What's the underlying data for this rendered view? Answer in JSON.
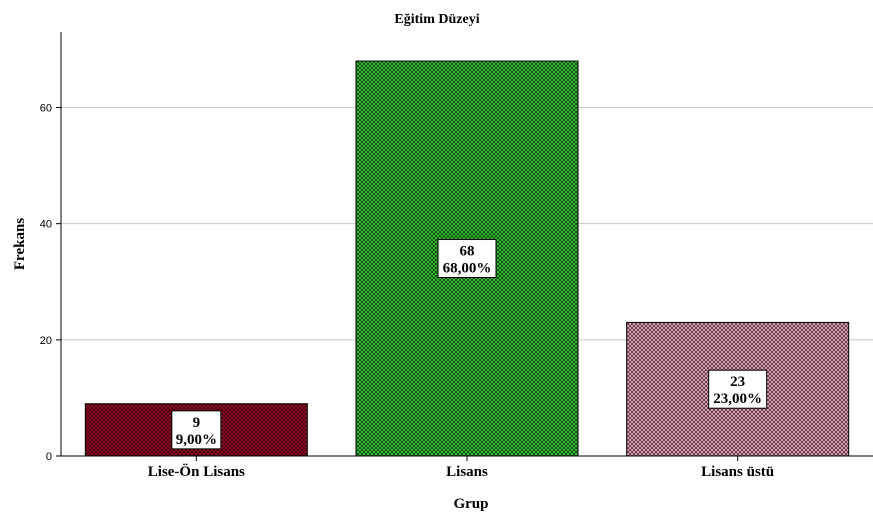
{
  "chart_data": {
    "type": "bar",
    "title": "Eğitim Düzeyi",
    "xlabel": "Grup",
    "ylabel": "Frekans",
    "categories": [
      "Lise-Ön Lisans",
      "Lisans",
      "Lisans üstü"
    ],
    "values": [
      9,
      68,
      23
    ],
    "data_labels": [
      {
        "count": "9",
        "percent": "9,00%"
      },
      {
        "count": "68",
        "percent": "68,00%"
      },
      {
        "count": "23",
        "percent": "23,00%"
      }
    ],
    "bar_colors": [
      "#9a0f2a",
      "#2fb52f",
      "#c792a6"
    ],
    "ylim": [
      0,
      73
    ],
    "yticks": [
      0,
      20,
      40,
      60
    ],
    "grid": true,
    "legend": "none"
  }
}
